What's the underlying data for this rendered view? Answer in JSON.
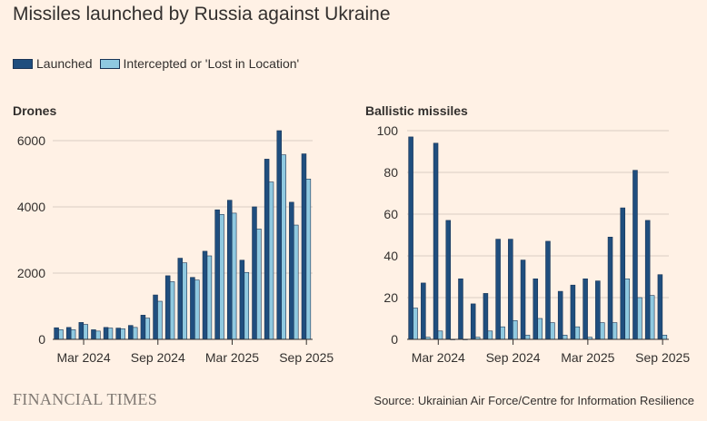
{
  "title": "Missiles launched by Russia against Ukraine",
  "legend": {
    "launched": "Launched",
    "intercepted": "Intercepted or 'Lost in Location'"
  },
  "colors": {
    "launched": "#1f4e7e",
    "intercepted": "#8fc9e0",
    "bar_outline": "#1a3556",
    "grid": "#d9cdc2",
    "axis": "#33302e",
    "background": "#fff1e5"
  },
  "footer": {
    "logo": "FINANCIAL TIMES",
    "source": "Source: Ukrainian Air Force/Centre for Information Resilience"
  },
  "chart_data": [
    {
      "type": "bar",
      "title": "Drones",
      "categories": [
        "Jan 2024",
        "Feb 2024",
        "Mar 2024",
        "Apr 2024",
        "May 2024",
        "Jun 2024",
        "Jul 2024",
        "Aug 2024",
        "Sep 2024",
        "Oct 2024",
        "Nov 2024",
        "Dec 2024",
        "Jan 2025",
        "Feb 2025",
        "Mar 2025",
        "Apr 2025",
        "May 2025",
        "Jun 2025",
        "Jul 2025",
        "Aug 2025",
        "Sep 2025"
      ],
      "series": [
        {
          "name": "Launched",
          "values": [
            350,
            360,
            510,
            290,
            360,
            340,
            420,
            730,
            1340,
            1920,
            2450,
            1870,
            2660,
            3910,
            4200,
            2390,
            4000,
            5440,
            6300,
            4140,
            5600
          ]
        },
        {
          "name": "Intercepted or 'Lost in Location'",
          "values": [
            290,
            290,
            450,
            250,
            340,
            320,
            360,
            640,
            1150,
            1740,
            2310,
            1790,
            2520,
            3770,
            3810,
            2020,
            3330,
            4750,
            5570,
            3450,
            4840
          ]
        }
      ],
      "tick_labels": [
        "Mar 2024",
        "Sep 2024",
        "Mar 2025",
        "Sep 2025"
      ],
      "y_ticks": [
        "0",
        "2000",
        "4000",
        "6000"
      ],
      "ylim": [
        0,
        6300
      ],
      "grid": true
    },
    {
      "type": "bar",
      "title": "Ballistic missiles",
      "categories": [
        "Jan 2024",
        "Feb 2024",
        "Mar 2024",
        "Apr 2024",
        "May 2024",
        "Jun 2024",
        "Jul 2024",
        "Aug 2024",
        "Sep 2024",
        "Oct 2024",
        "Nov 2024",
        "Dec 2024",
        "Jan 2025",
        "Feb 2025",
        "Mar 2025",
        "Apr 2025",
        "May 2025",
        "Jun 2025",
        "Jul 2025",
        "Aug 2025",
        "Sep 2025"
      ],
      "series": [
        {
          "name": "Launched",
          "values": [
            97,
            27,
            94,
            57,
            29,
            17,
            22,
            48,
            48,
            38,
            29,
            47,
            23,
            26,
            29,
            28,
            49,
            63,
            81,
            57,
            31
          ]
        },
        {
          "name": "Intercepted or 'Lost in Location'",
          "values": [
            15,
            1,
            4,
            0,
            0,
            1,
            4,
            6,
            9,
            2,
            10,
            8,
            2,
            6,
            1,
            8,
            8,
            29,
            20,
            21,
            2
          ]
        }
      ],
      "tick_labels": [
        "Mar 2024",
        "Sep 2024",
        "Mar 2025",
        "Sep 2025"
      ],
      "y_ticks": [
        "0",
        "20",
        "40",
        "60",
        "80",
        "100"
      ],
      "ylim": [
        0,
        100
      ],
      "grid": true
    }
  ]
}
